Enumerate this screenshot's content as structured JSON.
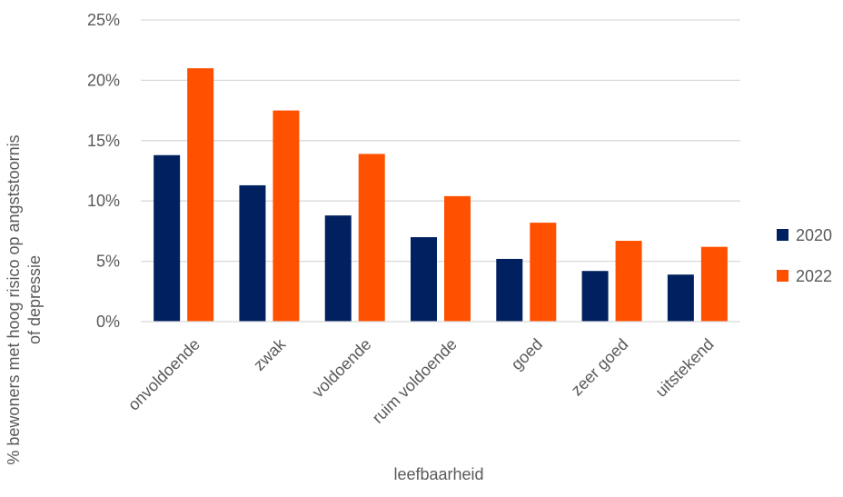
{
  "chart_data": {
    "type": "bar",
    "xlabel": "leefbaarheid",
    "ylabel_line1": "% bewoners met hoog risico op angststoornis",
    "ylabel_line2": "of depressie",
    "categories": [
      "onvoldoende",
      "zwak",
      "voldoende",
      "ruim voldoende",
      "goed",
      "zeer goed",
      "uitstekend"
    ],
    "series": [
      {
        "name": "2020",
        "color": "#002060",
        "values": [
          13.8,
          11.3,
          8.8,
          7.0,
          5.2,
          4.2,
          3.9
        ]
      },
      {
        "name": "2022",
        "color": "#FF5000",
        "values": [
          21.0,
          17.5,
          13.9,
          10.4,
          8.2,
          6.7,
          6.2
        ]
      }
    ],
    "ylim": [
      0,
      25
    ],
    "yticks": [
      0,
      5,
      10,
      15,
      20,
      25
    ],
    "ytick_labels": [
      "0%",
      "5%",
      "10%",
      "15%",
      "20%",
      "25%"
    ],
    "grid": true,
    "legend_position": "right"
  }
}
